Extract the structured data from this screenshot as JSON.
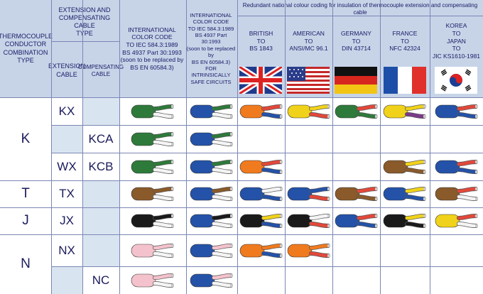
{
  "header": {
    "combination_type": [
      "THERMOCOUPLE",
      "CONDUCTOR",
      "COMBINATION",
      "TYPE"
    ],
    "extension_compensating": [
      "EXTENSION AND",
      "COMPENSATING CABLE",
      "TYPE"
    ],
    "extension_cable": [
      "EXTENSION",
      "CABLE"
    ],
    "compensating_cable": [
      "COMPENSATING",
      "CABLE"
    ],
    "iec_code": [
      "INTERNATIONAL",
      "COLOR CODE",
      "TO IEC 584.3:1989",
      "BS 4937 Part 30:1993",
      "(soon to be replaced by",
      "BS EN 60584.3)"
    ],
    "iec_intrinsic": [
      "INTERNATIONAL",
      "COLOR CODE",
      "TO IEC 584.3:1989",
      "BS 4937 Part 30:1993",
      "(soon to be replaced by",
      "BS EN 60584.3)",
      "FOR INTRINSICALLY",
      "SAFE CIRCUITS"
    ],
    "redundant_title": "Redundant national colour coding for insulation of thermocouple extension and compensating cable",
    "nations": [
      {
        "lines": [
          "BRITISH",
          "TO",
          "BS 1843"
        ],
        "flag": "uk-flag"
      },
      {
        "lines": [
          "AMERICAN",
          "TO",
          "ANSI/MC 96.1"
        ],
        "flag": "us-flag"
      },
      {
        "lines": [
          "GERMANY",
          "TO",
          "DIN 43714"
        ],
        "flag": "germany-flag"
      },
      {
        "lines": [
          "FRANCE",
          "TO",
          "NFC 42324"
        ],
        "flag": "france-flag"
      },
      {
        "lines": [
          "KOREA",
          "TO",
          "JAPAN",
          "TO",
          "JIC KS1610-1981"
        ],
        "flag": "korea-flag"
      }
    ]
  },
  "rows": [
    {
      "combo": "K",
      "ext": "KX",
      "comp": ""
    },
    {
      "combo": "",
      "ext": "",
      "comp": "KCA"
    },
    {
      "combo": "",
      "ext": "WX",
      "comp": "KCB"
    },
    {
      "combo": "T",
      "ext": "TX",
      "comp": ""
    },
    {
      "combo": "J",
      "ext": "JX",
      "comp": ""
    },
    {
      "combo": "N",
      "ext": "NX",
      "comp": ""
    },
    {
      "combo": "",
      "ext": "",
      "comp": "NC"
    }
  ],
  "colors": {
    "green": "#2e7a3a",
    "blue": "#2452a8",
    "red": "#e2483a",
    "orange": "#f07a1e",
    "yellow": "#f0d21a",
    "brown": "#8a5a2a",
    "black": "#1a1a1a",
    "pink": "#f4c2cc",
    "white": "#f4f4f4",
    "grey": "#9a9a9a"
  }
}
